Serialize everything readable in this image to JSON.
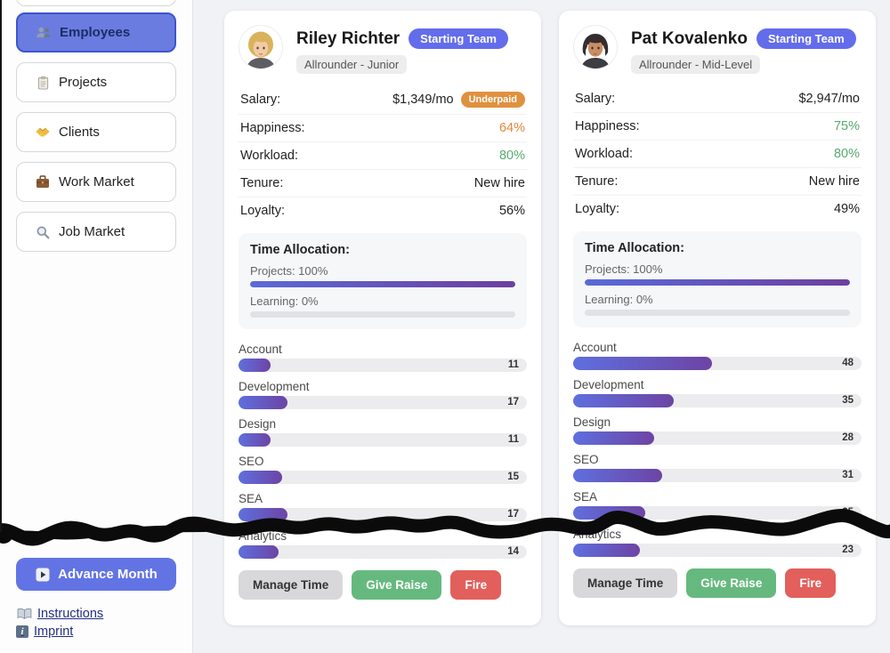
{
  "sidebar": {
    "items": [
      {
        "label": "Employees",
        "active": true
      },
      {
        "label": "Projects",
        "active": false
      },
      {
        "label": "Clients",
        "active": false
      },
      {
        "label": "Work Market",
        "active": false
      },
      {
        "label": "Job Market",
        "active": false
      }
    ],
    "advance_month_label": "Advance Month",
    "links": [
      {
        "label": "Instructions"
      },
      {
        "label": "Imprint"
      }
    ]
  },
  "stat_labels": {
    "salary": "Salary:",
    "happiness": "Happiness:",
    "workload": "Workload:",
    "tenure": "Tenure:",
    "loyalty": "Loyalty:"
  },
  "time_allocation_title": "Time Allocation:",
  "employees": [
    {
      "name": "Riley Richter",
      "team_badge": "Starting Team",
      "role": "Allrounder - Junior",
      "salary": "$1,349/mo",
      "salary_tag": "Underpaid",
      "happiness": "64%",
      "happiness_tone": "orange",
      "workload": "80%",
      "workload_tone": "green",
      "tenure": "New hire",
      "loyalty": "56%",
      "time_allocation": {
        "projects_label": "Projects: 100%",
        "projects_pct": 100,
        "learning_label": "Learning: 0%",
        "learning_pct": 0
      },
      "skills": [
        {
          "name": "Account",
          "value": 11
        },
        {
          "name": "Development",
          "value": 17
        },
        {
          "name": "Design",
          "value": 11
        },
        {
          "name": "SEO",
          "value": 15
        },
        {
          "name": "SEA",
          "value": 17
        },
        {
          "name": "Analytics",
          "value": 14
        }
      ],
      "actions": {
        "manage": "Manage Time",
        "raise": "Give Raise",
        "fire": "Fire"
      }
    },
    {
      "name": "Pat Kovalenko",
      "team_badge": "Starting Team",
      "role": "Allrounder - Mid-Level",
      "salary": "$2,947/mo",
      "salary_tag": "",
      "happiness": "75%",
      "happiness_tone": "green",
      "workload": "80%",
      "workload_tone": "green",
      "tenure": "New hire",
      "loyalty": "49%",
      "time_allocation": {
        "projects_label": "Projects: 100%",
        "projects_pct": 100,
        "learning_label": "Learning: 0%",
        "learning_pct": 0
      },
      "skills": [
        {
          "name": "Account",
          "value": 48
        },
        {
          "name": "Development",
          "value": 35
        },
        {
          "name": "Design",
          "value": 28
        },
        {
          "name": "SEO",
          "value": 31
        },
        {
          "name": "SEA",
          "value": 25
        },
        {
          "name": "Analytics",
          "value": 23
        }
      ],
      "actions": {
        "manage": "Manage Time",
        "raise": "Give Raise",
        "fire": "Fire"
      }
    }
  ],
  "colors": {
    "accent_indigo": "#6274e4",
    "badge_indigo": "#636ceb",
    "active_nav": "#6b7ce0",
    "underpaid_orange": "#e0913f",
    "value_green": "#57ab6e",
    "value_orange": "#e2883c",
    "bar_gradient_start": "#5f6fde",
    "bar_gradient_end": "#6d44a4",
    "give_raise_green": "#66b97e",
    "fire_red": "#e25f5c",
    "scribble_black": "#0b0b0b"
  }
}
